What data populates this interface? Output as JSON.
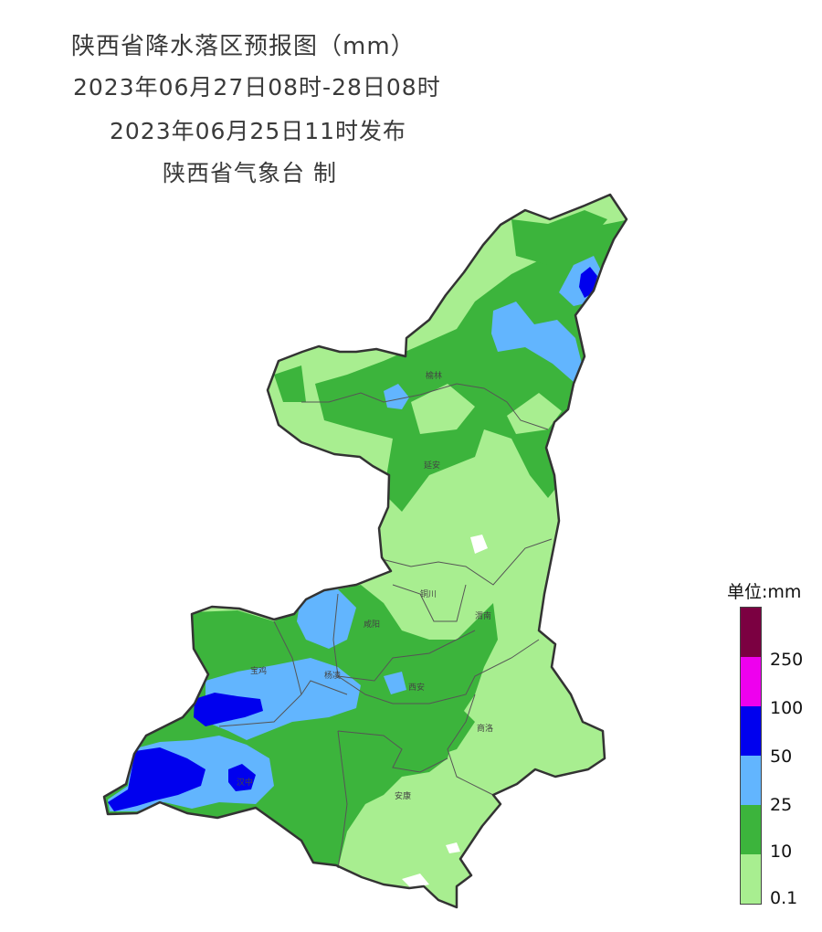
{
  "title": {
    "line1": "陕西省降水落区预报图（mm）",
    "line2": "2023年06月27日08时-28日08时",
    "line3": "2023年06月25日11时发布",
    "line4": "陕西省气象台 制"
  },
  "legend": {
    "unit": "单位:mm",
    "classes": [
      {
        "label": "",
        "color": "#7b0041"
      },
      {
        "label": "250",
        "color": "#ee00ee"
      },
      {
        "label": "100",
        "color": "#0000ee"
      },
      {
        "label": "50",
        "color": "#62b5fe"
      },
      {
        "label": "25",
        "color": "#3cb43c"
      },
      {
        "label": "10",
        "color": "#a8ee90"
      },
      {
        "label": "0.1",
        "color": ""
      }
    ]
  },
  "cities": [
    {
      "name": "榆林"
    },
    {
      "name": "延安"
    },
    {
      "name": "铜川"
    },
    {
      "name": "渭南"
    },
    {
      "name": "咸阳"
    },
    {
      "name": "宝鸡"
    },
    {
      "name": "杨凌"
    },
    {
      "name": "西安"
    },
    {
      "name": "商洛"
    },
    {
      "name": "汉中"
    },
    {
      "name": "安康"
    }
  ],
  "colors": {
    "light_green": "#a8ee90",
    "green": "#3cb43c",
    "light_blue": "#62b5fe",
    "blue": "#0000ee",
    "magenta": "#ee00ee",
    "maroon": "#7b0041",
    "border": "#333333"
  }
}
